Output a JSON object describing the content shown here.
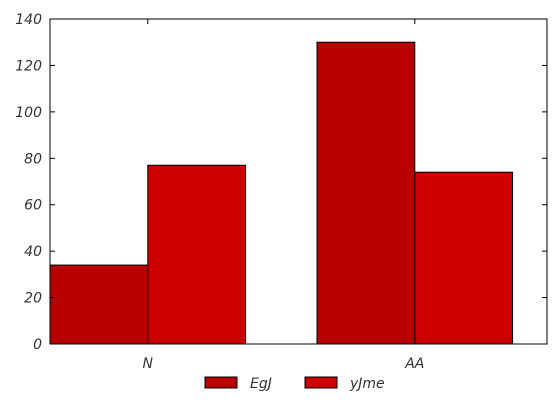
{
  "chart_data": {
    "type": "bar",
    "categories": [
      "N",
      "AA"
    ],
    "series": [
      {
        "name": "EgJ",
        "values": [
          34,
          130
        ],
        "color": "#b80000"
      },
      {
        "name": "yJme",
        "values": [
          77,
          74
        ],
        "color": "#cc0000"
      }
    ],
    "ylim": [
      0,
      140
    ],
    "yticks": [
      0,
      20,
      40,
      60,
      80,
      100,
      120,
      140
    ],
    "title": "",
    "xlabel": "",
    "ylabel": "",
    "grid": false,
    "legend": "bottom-center"
  }
}
